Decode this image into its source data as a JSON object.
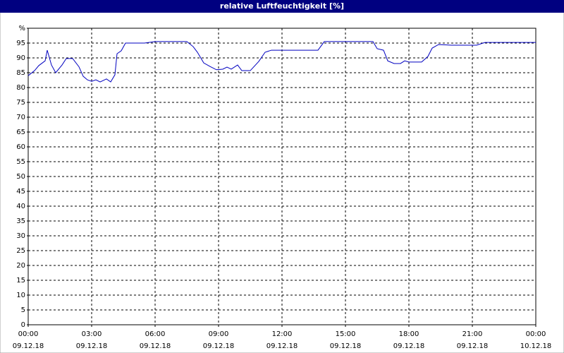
{
  "chart_data": {
    "type": "line",
    "title": "relative Luftfeuchtigkeit [%]",
    "x": [
      0,
      0.3,
      0.5,
      0.8,
      0.9,
      1.1,
      1.3,
      1.6,
      1.8,
      2.1,
      2.4,
      2.6,
      2.8,
      3.0,
      3.2,
      3.4,
      3.7,
      3.9,
      4.1,
      4.2,
      4.4,
      4.6,
      5.5,
      6.0,
      7.5,
      7.8,
      8.0,
      8.3,
      8.6,
      8.9,
      9.2,
      9.4,
      9.6,
      9.9,
      10.1,
      10.5,
      10.9,
      11.2,
      11.5,
      13.7,
      14.0,
      16.3,
      16.5,
      16.8,
      17.0,
      17.3,
      17.6,
      17.8,
      18.0,
      18.6,
      18.9,
      19.1,
      19.4,
      20.0,
      21.2,
      21.6,
      24.0
    ],
    "series": [
      {
        "color": "#0000c0",
        "values": [
          84,
          85.7,
          87.4,
          89,
          92.6,
          87.6,
          85,
          87.6,
          89.8,
          89.8,
          87,
          83.8,
          82.6,
          82.1,
          82.6,
          81.9,
          82.9,
          81.9,
          84.3,
          91.4,
          92.4,
          95,
          95,
          95.5,
          95.5,
          93.8,
          91.9,
          88.3,
          87.1,
          86,
          86.2,
          86.9,
          86.2,
          87.6,
          85.7,
          85.7,
          88.8,
          91.9,
          92.6,
          92.6,
          95.5,
          95.5,
          93.1,
          92.6,
          89,
          88.1,
          88.1,
          89,
          88.6,
          88.6,
          90.5,
          93.3,
          94.5,
          94.3,
          94.3,
          95.2,
          95.2
        ]
      }
    ],
    "xlim": [
      0,
      24
    ],
    "xticks": [
      {
        "value": 0,
        "label": [
          "00:00",
          "09.12.18"
        ]
      },
      {
        "value": 3,
        "label": [
          "03:00",
          "09.12.18"
        ]
      },
      {
        "value": 6,
        "label": [
          "06:00",
          "09.12.18"
        ]
      },
      {
        "value": 9,
        "label": [
          "09:00",
          "09.12.18"
        ]
      },
      {
        "value": 12,
        "label": [
          "12:00",
          "09.12.18"
        ]
      },
      {
        "value": 15,
        "label": [
          "15:00",
          "09.12.18"
        ]
      },
      {
        "value": 18,
        "label": [
          "18:00",
          "09.12.18"
        ]
      },
      {
        "value": 21,
        "label": [
          "21:00",
          "09.12.18"
        ]
      },
      {
        "value": 24,
        "label": [
          "00:00",
          "10.12.18"
        ]
      }
    ],
    "ylim": [
      0,
      100
    ],
    "yticks": [
      0,
      5,
      10,
      15,
      20,
      25,
      30,
      35,
      40,
      45,
      50,
      55,
      60,
      65,
      70,
      75,
      80,
      85,
      90,
      95,
      {
        "value": 100,
        "label": "%"
      }
    ],
    "grid": true
  }
}
